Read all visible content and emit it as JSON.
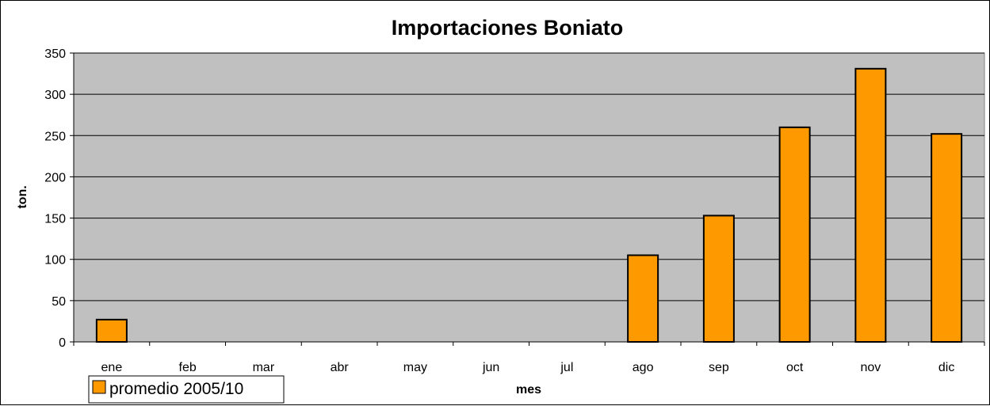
{
  "chart_data": {
    "type": "bar",
    "title": "Importaciones Boniato",
    "xlabel": "mes",
    "ylabel": "ton.",
    "categories": [
      "ene",
      "feb",
      "mar",
      "abr",
      "may",
      "jun",
      "jul",
      "ago",
      "sep",
      "oct",
      "nov",
      "dic"
    ],
    "series": [
      {
        "name": "promedio 2005/10",
        "values": [
          27,
          0,
          0,
          0,
          0,
          0,
          0,
          105,
          153,
          260,
          331,
          252
        ]
      }
    ],
    "ylim": [
      0,
      350
    ],
    "yticks": [
      0,
      50,
      100,
      150,
      200,
      250,
      300,
      350
    ],
    "grid": true,
    "legend_position": "bottom-left",
    "colors": {
      "bar": "#FF9900",
      "plot_background": "#C0C0C0",
      "gridline": "#000000",
      "border": "#000000"
    }
  }
}
